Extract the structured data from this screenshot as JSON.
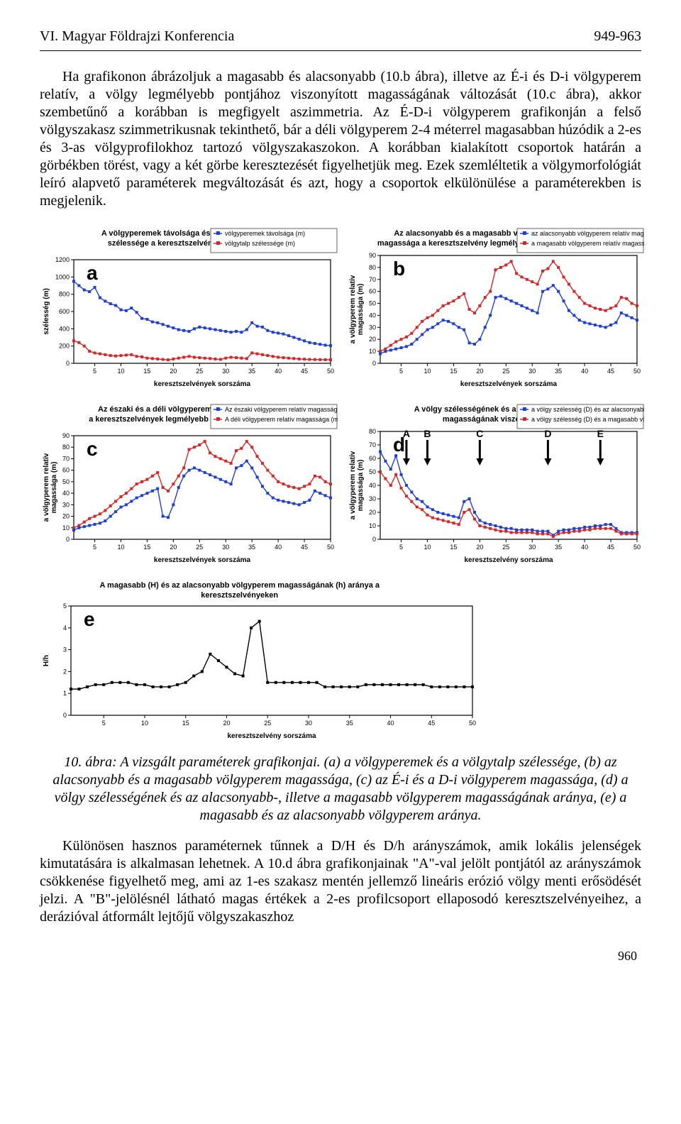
{
  "header": {
    "left": "VI. Magyar Földrajzi Konferencia",
    "right": "949-963"
  },
  "para1": "Ha grafikonon ábrázoljuk a magasabb és alacsonyabb (10.b ábra), illetve az É-i és D-i völgyperem relatív, a völgy legmélyebb pontjához viszonyított magasságának változását (10.c ábra), akkor szembetűnő a korábban is megfigyelt aszimmetria. Az É-D-i völgyperem grafikonján a felső völgyszakasz szimmetrikusnak tekinthető, bár a déli völgyperem 2-4 méterrel magasabban húzódik a 2-es és 3-as völgyprofilokhoz tartozó völgyszakaszokon. A korábban kialakított csoportok határán a görbékben törést, vagy a két görbe keresztezését figyelhetjük meg. Ezek szemléltetik a völgymorfológiát leíró alapvető paraméterek megváltozását és azt, hogy a csoportok elkülönülése a paraméterekben is megjelenik.",
  "caption": "10. ábra: A vizsgált paraméterek grafikonjai. (a) a völgyperemek és a völgytalp szélessége, (b) az alacsonyabb és a magasabb völgyperem magassága, (c) az É-i és a D-i völgyperem magassága, (d) a völgy szélességének és az alacsonyabb-, illetve a magasabb völgyperem magasságának aránya, (e) a magasabb és az alacsonyabb völgyperem aránya.",
  "para2": "Különösen hasznos paraméternek tűnnek a D/H és D/h arányszámok, amik lokális jelenségek kimutatására is alkalmasan lehetnek. A 10.d ábra grafikonjainak \"A\"-val jelölt pontjától az arányszámok csökkenése figyelhető meg, ami az 1-es szakasz mentén jellemző lineáris erózió völgy menti erősödését jelzi. A \"B\"-jelölésnél látható magas értékek a 2-es profilcsoport ellaposodó keresztszelvényeihez, a derázióval átformált lejtőjű völgyszakaszhoz",
  "pagenum": "960",
  "common": {
    "xlabel_short": "keresztszelvények sorszáma",
    "xlabel_long": "keresztszelvény sorszáma",
    "xticks": [
      5,
      10,
      15,
      20,
      25,
      30,
      35,
      40,
      45,
      50
    ],
    "grid_color": "#000000",
    "axis_color": "#000000",
    "red": "#d62728",
    "blue": "#1f3fd1",
    "black": "#000000"
  },
  "chart_a": {
    "letter": "a",
    "title1": "A völgyperemek távolsága és a völgytalpak",
    "title2": "szélessége a keresztszelvények mentén",
    "ylabel": "szélesség (m)",
    "yticks": [
      0,
      200,
      400,
      600,
      800,
      1000,
      1200
    ],
    "legend": [
      "völgyperemek távolsága (m)",
      "völgytalp szélessége (m)"
    ],
    "series_blue": [
      950,
      900,
      850,
      830,
      880,
      760,
      720,
      690,
      670,
      620,
      610,
      640,
      590,
      520,
      510,
      480,
      470,
      450,
      430,
      410,
      390,
      380,
      370,
      400,
      420,
      410,
      400,
      390,
      380,
      370,
      360,
      370,
      360,
      390,
      470,
      430,
      420,
      380,
      360,
      350,
      340,
      320,
      300,
      280,
      260,
      240,
      230,
      220,
      210,
      205
    ],
    "series_red": [
      260,
      240,
      200,
      140,
      120,
      110,
      100,
      90,
      85,
      90,
      95,
      100,
      80,
      75,
      60,
      55,
      50,
      45,
      40,
      50,
      60,
      70,
      80,
      70,
      65,
      60,
      55,
      50,
      45,
      60,
      70,
      65,
      60,
      55,
      120,
      110,
      100,
      90,
      80,
      70,
      65,
      60,
      55,
      50,
      48,
      45,
      44,
      43,
      42,
      41
    ]
  },
  "chart_b": {
    "letter": "b",
    "title1": "Az alacsonyabb és a magasabb völgyperem relatív",
    "title2": "magassága a keresztszelvény legmélyebb pontjához képest",
    "ylabel": "a völgyperem relatív\nmagassága (m)",
    "yticks": [
      0,
      10,
      20,
      30,
      40,
      50,
      60,
      70,
      80,
      90
    ],
    "legend": [
      "az alacsonyabb völgyperem relatív magassága (m)",
      "a magasabb völgyperem relatív magassága (m)"
    ],
    "series_red": [
      10,
      12,
      15,
      18,
      20,
      22,
      25,
      30,
      35,
      38,
      40,
      44,
      48,
      50,
      52,
      55,
      58,
      45,
      42,
      48,
      55,
      60,
      78,
      80,
      82,
      85,
      75,
      72,
      70,
      68,
      66,
      77,
      79,
      85,
      80,
      72,
      66,
      60,
      55,
      50,
      48,
      46,
      45,
      44,
      46,
      48,
      55,
      54,
      50,
      48
    ],
    "series_blue": [
      8,
      10,
      11,
      12,
      13,
      14,
      16,
      20,
      24,
      28,
      30,
      33,
      36,
      35,
      33,
      30,
      28,
      17,
      16,
      20,
      30,
      40,
      55,
      56,
      54,
      52,
      50,
      48,
      46,
      44,
      42,
      60,
      62,
      65,
      60,
      52,
      44,
      40,
      36,
      34,
      33,
      32,
      31,
      30,
      32,
      34,
      42,
      40,
      38,
      36
    ]
  },
  "chart_c": {
    "letter": "c",
    "title1": "Az északi és a déli völgyperemek magassága",
    "title2": "a keresztszelvények legmélyebb pontjához képest",
    "ylabel": "a völgyperem relatív\nmagassága (m)",
    "yticks": [
      0,
      10,
      20,
      30,
      40,
      50,
      60,
      70,
      80,
      90
    ],
    "legend": [
      "Az északi völgyperem relatív magassága (m)",
      "A déli völgyperem relatív magassága (m)"
    ],
    "series_blue": [
      8,
      10,
      11,
      12,
      13,
      14,
      16,
      20,
      24,
      28,
      30,
      33,
      36,
      38,
      40,
      42,
      44,
      20,
      19,
      30,
      45,
      55,
      60,
      62,
      60,
      58,
      56,
      54,
      52,
      50,
      48,
      62,
      64,
      68,
      62,
      54,
      46,
      40,
      36,
      34,
      33,
      32,
      31,
      30,
      32,
      34,
      42,
      40,
      38,
      36
    ],
    "series_red": [
      10,
      12,
      15,
      18,
      20,
      22,
      25,
      29,
      33,
      37,
      40,
      44,
      48,
      50,
      52,
      55,
      58,
      45,
      42,
      48,
      55,
      62,
      78,
      80,
      82,
      85,
      75,
      72,
      70,
      68,
      66,
      77,
      79,
      85,
      80,
      72,
      66,
      60,
      55,
      50,
      48,
      46,
      45,
      44,
      46,
      48,
      55,
      54,
      50,
      48
    ]
  },
  "chart_d": {
    "letter": "d",
    "title1": "A völgy szélességének és a völgyperem",
    "title2": "magasságának viszonya",
    "ylabel": "a völgyperem relatív\nmagassága (m)",
    "yticks": [
      0,
      10,
      20,
      30,
      40,
      50,
      60,
      70,
      80
    ],
    "legend": [
      "a völgy szélesség (D) és az alacsonyabb völgyperem (h) aránya",
      "a völgy szélesség (D) és a magasabb völgyperem (H) aránya"
    ],
    "series_blue": [
      65,
      58,
      52,
      62,
      48,
      40,
      35,
      30,
      28,
      24,
      22,
      20,
      19,
      18,
      17,
      16,
      28,
      30,
      20,
      14,
      12,
      11,
      10,
      9,
      8,
      8,
      7,
      7,
      7,
      7,
      6,
      6,
      6,
      3,
      6,
      7,
      7,
      8,
      8,
      9,
      9,
      10,
      10,
      11,
      11,
      8,
      5,
      5,
      5,
      5
    ],
    "series_red": [
      50,
      45,
      40,
      48,
      38,
      32,
      28,
      24,
      22,
      18,
      16,
      15,
      14,
      13,
      12,
      11,
      20,
      22,
      15,
      10,
      9,
      8,
      7,
      6,
      6,
      5,
      5,
      5,
      5,
      5,
      4,
      4,
      4,
      2,
      4,
      5,
      5,
      6,
      6,
      7,
      7,
      8,
      8,
      8,
      8,
      6,
      4,
      4,
      4,
      4
    ],
    "annotations": [
      "A",
      "B",
      "C",
      "D",
      "E"
    ],
    "anno_x": [
      6,
      10,
      20,
      33,
      43
    ]
  },
  "chart_e": {
    "letter": "e",
    "title1": "A magasabb (H) és az alacsonyabb völgyperem magasságának (h) aránya a",
    "title2": "keresztszelvényeken",
    "ylabel": "H/h",
    "yticks": [
      0,
      1,
      2,
      3,
      4,
      5
    ],
    "series": [
      1.2,
      1.2,
      1.3,
      1.4,
      1.4,
      1.5,
      1.5,
      1.5,
      1.4,
      1.4,
      1.3,
      1.3,
      1.3,
      1.4,
      1.5,
      1.8,
      2.0,
      2.8,
      2.5,
      2.2,
      1.9,
      1.8,
      4.0,
      4.3,
      1.5,
      1.5,
      1.5,
      1.5,
      1.5,
      1.5,
      1.5,
      1.3,
      1.3,
      1.3,
      1.3,
      1.3,
      1.4,
      1.4,
      1.4,
      1.4,
      1.4,
      1.4,
      1.4,
      1.4,
      1.3,
      1.3,
      1.3,
      1.3,
      1.3,
      1.3
    ]
  }
}
